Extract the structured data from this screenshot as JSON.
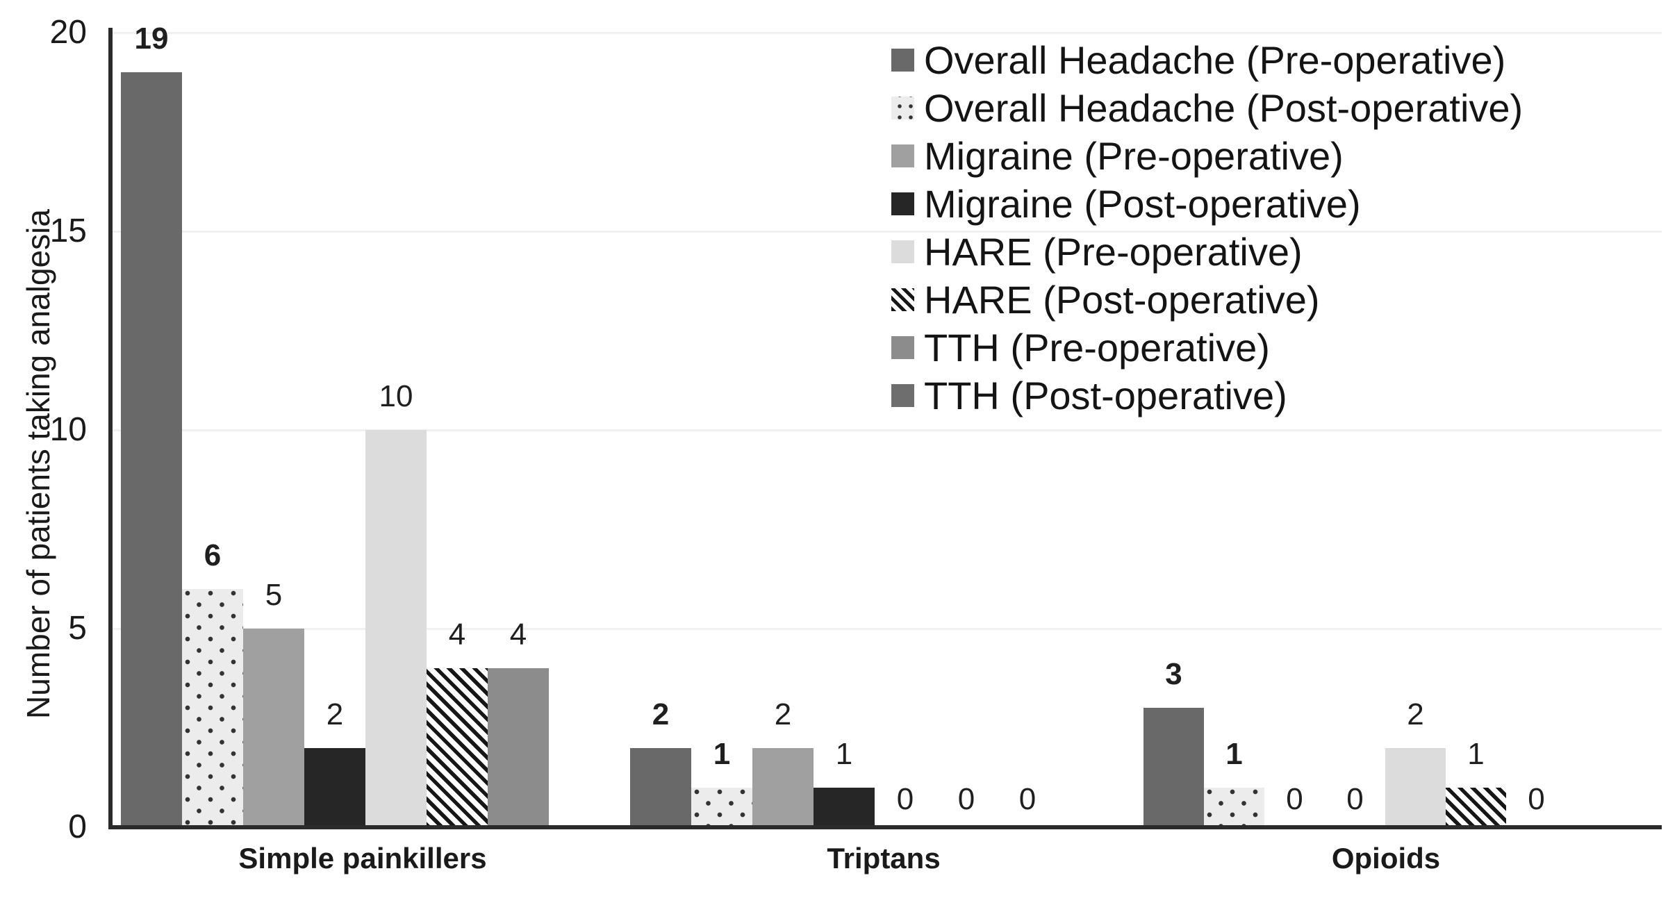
{
  "chart_data": {
    "type": "bar",
    "title": "",
    "xlabel": "",
    "ylabel": "Number of patients taking analgesia",
    "categories": [
      "Simple painkillers",
      "Triptans",
      "Opioids"
    ],
    "y_ticks": [
      0,
      5,
      10,
      15,
      20
    ],
    "ylim": [
      0,
      20
    ],
    "grid": "horizontal",
    "legend_position": "top-right",
    "axis_color": "#2b2b2b",
    "gridline_color": "#f0f0f0",
    "text_color": "#1a1a1a",
    "series": [
      {
        "key": "overall-headache-pre",
        "name": "Overall Headache (Pre-operative)",
        "pattern": "solid",
        "color": "#696969",
        "bold_value_labels": true,
        "values": [
          19,
          2,
          3
        ]
      },
      {
        "key": "overall-headache-post",
        "name": "Overall Headache (Post-operative)",
        "pattern": "dots",
        "color": "#ececec",
        "dot_color": "#333333",
        "bold_value_labels": true,
        "values": [
          6,
          1,
          1
        ]
      },
      {
        "key": "migraine-pre",
        "name": "Migraine (Pre-operative)",
        "pattern": "solid",
        "color": "#a0a0a0",
        "bold_value_labels": false,
        "values": [
          5,
          2,
          0
        ]
      },
      {
        "key": "migraine-post",
        "name": "Migraine (Post-operative)",
        "pattern": "solid",
        "color": "#262626",
        "bold_value_labels": false,
        "values": [
          2,
          1,
          0
        ]
      },
      {
        "key": "hare-pre",
        "name": "HARE (Pre-operative)",
        "pattern": "solid",
        "color": "#dcdcdc",
        "bold_value_labels": false,
        "values": [
          10,
          0,
          2
        ]
      },
      {
        "key": "hare-post",
        "name": "HARE (Post-operative)",
        "pattern": "hatch",
        "color": "#ffffff",
        "stripe_color": "#161616",
        "bold_value_labels": false,
        "values": [
          4,
          0,
          1
        ]
      },
      {
        "key": "tth-pre",
        "name": "TTH (Pre-operative)",
        "pattern": "solid",
        "color": "#8c8c8c",
        "bold_value_labels": false,
        "values": [
          4,
          0,
          0
        ]
      },
      {
        "key": "tth-post",
        "name": "TTH (Post-operative)",
        "pattern": "solid",
        "color": "#6e6e6e",
        "bold_value_labels": false,
        "values": [
          null,
          null,
          null
        ]
      }
    ]
  }
}
